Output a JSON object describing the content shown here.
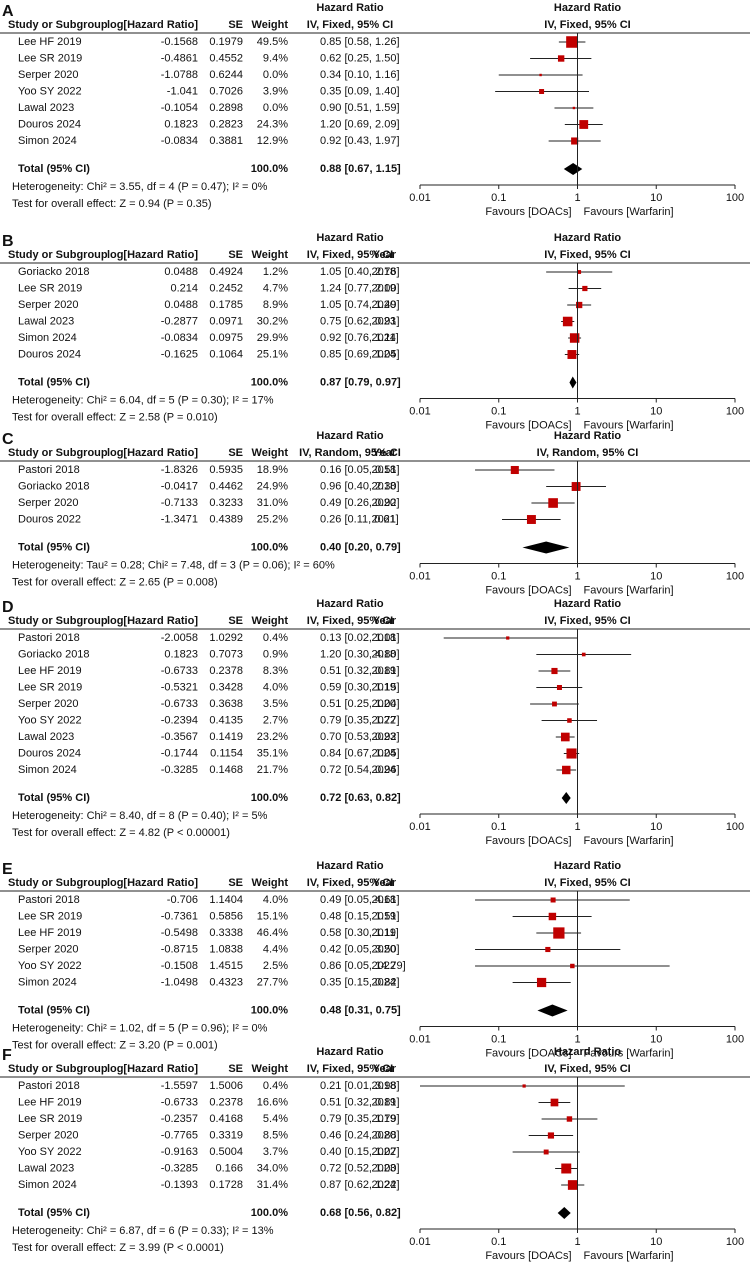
{
  "chart_data": [
    {
      "type": "forest",
      "label": "A",
      "columns": [
        "Study or Subgroup",
        "log[Hazard Ratio]",
        "SE",
        "Weight",
        "Hazard Ratio",
        "IV, Fixed, 95% CI"
      ],
      "plot_title": [
        "Hazard Ratio",
        "IV, Fixed, 95% CI"
      ],
      "rows": [
        {
          "study": "Lee HF 2019",
          "log_hr": -0.1568,
          "se": 0.1979,
          "weight": 49.5,
          "weight_label": "49.5%",
          "hr": 0.85,
          "ci": [
            0.58,
            1.26
          ],
          "hr_label": "0.85 [0.58, 1.26]"
        },
        {
          "study": "Lee SR 2019",
          "log_hr": -0.4861,
          "se": 0.4552,
          "weight": 9.4,
          "weight_label": "9.4%",
          "hr": 0.62,
          "ci": [
            0.25,
            1.5
          ],
          "hr_label": "0.62 [0.25, 1.50]"
        },
        {
          "study": "Serper 2020",
          "log_hr": -1.0788,
          "se": 0.6244,
          "weight": 0,
          "weight_label": "0.0%",
          "hr": 0.34,
          "ci": [
            0.1,
            1.16
          ],
          "hr_label": "0.34 [0.10, 1.16]"
        },
        {
          "study": "Yoo SY 2022",
          "log_hr": -1.041,
          "se": 0.7026,
          "weight": 3.9,
          "weight_label": "3.9%",
          "hr": 0.35,
          "ci": [
            0.09,
            1.4
          ],
          "hr_label": "0.35 [0.09, 1.40]"
        },
        {
          "study": "Lawal 2023",
          "log_hr": -0.1054,
          "se": 0.2898,
          "weight": 0,
          "weight_label": "0.0%",
          "hr": 0.9,
          "ci": [
            0.51,
            1.59
          ],
          "hr_label": "0.90 [0.51, 1.59]"
        },
        {
          "study": "Douros 2024",
          "log_hr": 0.1823,
          "se": 0.2823,
          "weight": 24.3,
          "weight_label": "24.3%",
          "hr": 1.2,
          "ci": [
            0.69,
            2.09
          ],
          "hr_label": "1.20 [0.69, 2.09]"
        },
        {
          "study": "Simon 2024",
          "log_hr": -0.0834,
          "se": 0.3881,
          "weight": 12.9,
          "weight_label": "12.9%",
          "hr": 0.92,
          "ci": [
            0.43,
            1.97
          ],
          "hr_label": "0.92 [0.43, 1.97]"
        }
      ],
      "total": {
        "study": "Total (95% CI)",
        "weight": 100,
        "weight_label": "100.0%",
        "hr": 0.88,
        "ci": [
          0.67,
          1.15
        ],
        "hr_label": "0.88 [0.67, 1.15]"
      },
      "heterogeneity": "Heterogeneity: Chi² = 3.55, df = 4 (P = 0.47); I² = 0%",
      "overall_effect": "Test for overall effect: Z = 0.94 (P = 0.35)",
      "xlim": [
        0.01,
        100
      ],
      "xticks": [
        0.01,
        0.1,
        1,
        10,
        100
      ],
      "log_x": true,
      "x_labels": [
        "Favours [DOACs]",
        "Favours [Warfarin]"
      ],
      "color": "#c00000"
    },
    {
      "type": "forest",
      "label": "B",
      "columns": [
        "Study or Subgroup",
        "log[Hazard Ratio]",
        "SE",
        "Weight",
        "Hazard Ratio",
        "IV, Fixed, 95% CI",
        "Year"
      ],
      "plot_title": [
        "Hazard Ratio",
        "IV, Fixed, 95% CI"
      ],
      "rows": [
        {
          "study": "Goriacko 2018",
          "log_hr": 0.0488,
          "se": 0.4924,
          "weight": 1.2,
          "weight_label": "1.2%",
          "hr": 1.05,
          "ci": [
            0.4,
            2.76
          ],
          "hr_label": "1.05 [0.40, 2.76]",
          "year": 2018
        },
        {
          "study": "Lee SR 2019",
          "log_hr": 0.214,
          "se": 0.2452,
          "weight": 4.7,
          "weight_label": "4.7%",
          "hr": 1.24,
          "ci": [
            0.77,
            2.0
          ],
          "hr_label": "1.24 [0.77, 2.00]",
          "year": 2019
        },
        {
          "study": "Serper 2020",
          "log_hr": 0.0488,
          "se": 0.1785,
          "weight": 8.9,
          "weight_label": "8.9%",
          "hr": 1.05,
          "ci": [
            0.74,
            1.49
          ],
          "hr_label": "1.05 [0.74, 1.49]",
          "year": 2020
        },
        {
          "study": "Lawal 2023",
          "log_hr": -0.2877,
          "se": 0.0971,
          "weight": 30.2,
          "weight_label": "30.2%",
          "hr": 0.75,
          "ci": [
            0.62,
            0.91
          ],
          "hr_label": "0.75 [0.62, 0.91]",
          "year": 2023
        },
        {
          "study": "Simon 2024",
          "log_hr": -0.0834,
          "se": 0.0975,
          "weight": 29.9,
          "weight_label": "29.9%",
          "hr": 0.92,
          "ci": [
            0.76,
            1.11
          ],
          "hr_label": "0.92 [0.76, 1.11]",
          "year": 2024
        },
        {
          "study": "Douros 2024",
          "log_hr": -0.1625,
          "se": 0.1064,
          "weight": 25.1,
          "weight_label": "25.1%",
          "hr": 0.85,
          "ci": [
            0.69,
            1.05
          ],
          "hr_label": "0.85 [0.69, 1.05]",
          "year": 2024
        }
      ],
      "total": {
        "study": "Total (95% CI)",
        "weight": 100,
        "weight_label": "100.0%",
        "hr": 0.87,
        "ci": [
          0.79,
          0.97
        ],
        "hr_label": "0.87 [0.79, 0.97]"
      },
      "heterogeneity": "Heterogeneity: Chi² = 6.04, df = 5 (P = 0.30); I² = 17%",
      "overall_effect": "Test for overall effect: Z = 2.58 (P = 0.010)",
      "xlim": [
        0.01,
        100
      ],
      "xticks": [
        0.01,
        0.1,
        1,
        10,
        100
      ],
      "log_x": true,
      "x_labels": [
        "Favours [DOACs]",
        "Favours [Warfarin]"
      ],
      "color": "#c00000"
    },
    {
      "type": "forest",
      "label": "C",
      "columns": [
        "Study or Subgroup",
        "log[Hazard Ratio]",
        "SE",
        "Weight",
        "Hazard Ratio",
        "IV, Random, 95% CI",
        "Year"
      ],
      "plot_title": [
        "Hazard Ratio",
        "IV, Random, 95% CI"
      ],
      "rows": [
        {
          "study": "Pastori 2018",
          "log_hr": -1.8326,
          "se": 0.5935,
          "weight": 18.9,
          "weight_label": "18.9%",
          "hr": 0.16,
          "ci": [
            0.05,
            0.51
          ],
          "hr_label": "0.16 [0.05, 0.51]",
          "year": 2018
        },
        {
          "study": "Goriacko 2018",
          "log_hr": -0.0417,
          "se": 0.4462,
          "weight": 24.9,
          "weight_label": "24.9%",
          "hr": 0.96,
          "ci": [
            0.4,
            2.3
          ],
          "hr_label": "0.96 [0.40, 2.30]",
          "year": 2018
        },
        {
          "study": "Serper 2020",
          "log_hr": -0.7133,
          "se": 0.3233,
          "weight": 31,
          "weight_label": "31.0%",
          "hr": 0.49,
          "ci": [
            0.26,
            0.92
          ],
          "hr_label": "0.49 [0.26, 0.92]",
          "year": 2020
        },
        {
          "study": "Douros 2022",
          "log_hr": -1.3471,
          "se": 0.4389,
          "weight": 25.2,
          "weight_label": "25.2%",
          "hr": 0.26,
          "ci": [
            0.11,
            0.61
          ],
          "hr_label": "0.26 [0.11, 0.61]",
          "year": 2021
        }
      ],
      "total": {
        "study": "Total (95% CI)",
        "weight": 100,
        "weight_label": "100.0%",
        "hr": 0.4,
        "ci": [
          0.2,
          0.79
        ],
        "hr_label": "0.40 [0.20, 0.79]"
      },
      "heterogeneity": "Heterogeneity: Tau² = 0.28; Chi² = 7.48, df = 3 (P = 0.06); I² = 60%",
      "overall_effect": "Test for overall effect: Z = 2.65 (P = 0.008)",
      "xlim": [
        0.01,
        100
      ],
      "xticks": [
        0.01,
        0.1,
        1,
        10,
        100
      ],
      "log_x": true,
      "x_labels": [
        "Favours [DOACs]",
        "Favours [Warfarin]"
      ],
      "color": "#c00000"
    },
    {
      "type": "forest",
      "label": "D",
      "columns": [
        "Study or Subgroup",
        "log[Hazard Ratio]",
        "SE",
        "Weight",
        "Hazard Ratio",
        "IV, Fixed, 95% CI",
        "Year"
      ],
      "plot_title": [
        "Hazard Ratio",
        "IV, Fixed, 95% CI"
      ],
      "rows": [
        {
          "study": "Pastori 2018",
          "log_hr": -2.0058,
          "se": 1.0292,
          "weight": 0.4,
          "weight_label": "0.4%",
          "hr": 0.13,
          "ci": [
            0.02,
            1.01
          ],
          "hr_label": "0.13 [0.02, 1.01]",
          "year": 2018
        },
        {
          "study": "Goriacko 2018",
          "log_hr": 0.1823,
          "se": 0.7073,
          "weight": 0.9,
          "weight_label": "0.9%",
          "hr": 1.2,
          "ci": [
            0.3,
            4.8
          ],
          "hr_label": "1.20 [0.30, 4.80]",
          "year": 2018
        },
        {
          "study": "Lee HF 2019",
          "log_hr": -0.6733,
          "se": 0.2378,
          "weight": 8.3,
          "weight_label": "8.3%",
          "hr": 0.51,
          "ci": [
            0.32,
            0.81
          ],
          "hr_label": "0.51 [0.32, 0.81]",
          "year": 2019
        },
        {
          "study": "Lee SR 2019",
          "log_hr": -0.5321,
          "se": 0.3428,
          "weight": 4,
          "weight_label": "4.0%",
          "hr": 0.59,
          "ci": [
            0.3,
            1.15
          ],
          "hr_label": "0.59 [0.30, 1.15]",
          "year": 2019
        },
        {
          "study": "Serper 2020",
          "log_hr": -0.6733,
          "se": 0.3638,
          "weight": 3.5,
          "weight_label": "3.5%",
          "hr": 0.51,
          "ci": [
            0.25,
            1.04
          ],
          "hr_label": "0.51 [0.25, 1.04]",
          "year": 2020
        },
        {
          "study": "Yoo SY 2022",
          "log_hr": -0.2394,
          "se": 0.4135,
          "weight": 2.7,
          "weight_label": "2.7%",
          "hr": 0.79,
          "ci": [
            0.35,
            1.77
          ],
          "hr_label": "0.79 [0.35, 1.77]",
          "year": 2022
        },
        {
          "study": "Lawal 2023",
          "log_hr": -0.3567,
          "se": 0.1419,
          "weight": 23.2,
          "weight_label": "23.2%",
          "hr": 0.7,
          "ci": [
            0.53,
            0.92
          ],
          "hr_label": "0.70 [0.53, 0.92]",
          "year": 2023
        },
        {
          "study": "Douros 2024",
          "log_hr": -0.1744,
          "se": 0.1154,
          "weight": 35.1,
          "weight_label": "35.1%",
          "hr": 0.84,
          "ci": [
            0.67,
            1.05
          ],
          "hr_label": "0.84 [0.67, 1.05]",
          "year": 2024
        },
        {
          "study": "Simon 2024",
          "log_hr": -0.3285,
          "se": 0.1468,
          "weight": 21.7,
          "weight_label": "21.7%",
          "hr": 0.72,
          "ci": [
            0.54,
            0.96
          ],
          "hr_label": "0.72 [0.54, 0.96]",
          "year": 2024
        }
      ],
      "total": {
        "study": "Total (95% CI)",
        "weight": 100,
        "weight_label": "100.0%",
        "hr": 0.72,
        "ci": [
          0.63,
          0.82
        ],
        "hr_label": "0.72 [0.63, 0.82]"
      },
      "heterogeneity": "Heterogeneity: Chi² = 8.40, df = 8 (P = 0.40); I² = 5%",
      "overall_effect": "Test for overall effect: Z = 4.82 (P < 0.00001)",
      "xlim": [
        0.01,
        100
      ],
      "xticks": [
        0.01,
        0.1,
        1,
        10,
        100
      ],
      "log_x": true,
      "x_labels": [
        "Favours [DOACs]",
        "Favours [Warfarin]"
      ],
      "color": "#c00000"
    },
    {
      "type": "forest",
      "label": "E",
      "columns": [
        "Study or Subgroup",
        "log[Hazard Ratio]",
        "SE",
        "Weight",
        "Hazard Ratio",
        "IV, Fixed, 95% CI",
        "Year"
      ],
      "plot_title": [
        "Hazard Ratio",
        "IV, Fixed, 95% CI"
      ],
      "rows": [
        {
          "study": "Pastori 2018",
          "log_hr": -0.706,
          "se": 1.1404,
          "weight": 4,
          "weight_label": "4.0%",
          "hr": 0.49,
          "ci": [
            0.05,
            4.61
          ],
          "hr_label": "0.49 [0.05, 4.61]",
          "year": 2018
        },
        {
          "study": "Lee SR 2019",
          "log_hr": -0.7361,
          "se": 0.5856,
          "weight": 15.1,
          "weight_label": "15.1%",
          "hr": 0.48,
          "ci": [
            0.15,
            1.51
          ],
          "hr_label": "0.48 [0.15, 1.51]",
          "year": 2019
        },
        {
          "study": "Lee HF 2019",
          "log_hr": -0.5498,
          "se": 0.3338,
          "weight": 46.4,
          "weight_label": "46.4%",
          "hr": 0.58,
          "ci": [
            0.3,
            1.11
          ],
          "hr_label": "0.58 [0.30, 1.11]",
          "year": 2019
        },
        {
          "study": "Serper 2020",
          "log_hr": -0.8715,
          "se": 1.0838,
          "weight": 4.4,
          "weight_label": "4.4%",
          "hr": 0.42,
          "ci": [
            0.05,
            3.5
          ],
          "hr_label": "0.42 [0.05, 3.50]",
          "year": 2020
        },
        {
          "study": "Yoo SY 2022",
          "log_hr": -0.1508,
          "se": 1.4515,
          "weight": 2.5,
          "weight_label": "2.5%",
          "hr": 0.86,
          "ci": [
            0.05,
            14.79
          ],
          "hr_label": "0.86 [0.05, 14.79]",
          "year": 2022
        },
        {
          "study": "Simon 2024",
          "log_hr": -1.0498,
          "se": 0.4323,
          "weight": 27.7,
          "weight_label": "27.7%",
          "hr": 0.35,
          "ci": [
            0.15,
            0.82
          ],
          "hr_label": "0.35 [0.15, 0.82]",
          "year": 2024
        }
      ],
      "total": {
        "study": "Total (95% CI)",
        "weight": 100,
        "weight_label": "100.0%",
        "hr": 0.48,
        "ci": [
          0.31,
          0.75
        ],
        "hr_label": "0.48 [0.31, 0.75]"
      },
      "heterogeneity": "Heterogeneity: Chi² = 1.02, df = 5 (P = 0.96); I² = 0%",
      "overall_effect": "Test for overall effect: Z = 3.20 (P = 0.001)",
      "xlim": [
        0.01,
        100
      ],
      "xticks": [
        0.01,
        0.1,
        1,
        10,
        100
      ],
      "log_x": true,
      "x_labels": [
        "Favours [DOACs]",
        "Favours [Warfarin]"
      ],
      "color": "#c00000"
    },
    {
      "type": "forest",
      "label": "F",
      "columns": [
        "Study or Subgroup",
        "log[Hazard Ratio]",
        "SE",
        "Weight",
        "Hazard Ratio",
        "IV, Fixed, 95% CI",
        "Year"
      ],
      "plot_title": [
        "Hazard Ratio",
        "IV, Fixed, 95% CI"
      ],
      "rows": [
        {
          "study": "Pastori 2018",
          "log_hr": -1.5597,
          "se": 1.5006,
          "weight": 0.4,
          "weight_label": "0.4%",
          "hr": 0.21,
          "ci": [
            0.01,
            3.98
          ],
          "hr_label": "0.21 [0.01, 3.98]",
          "year": 2018
        },
        {
          "study": "Lee HF 2019",
          "log_hr": -0.6733,
          "se": 0.2378,
          "weight": 16.6,
          "weight_label": "16.6%",
          "hr": 0.51,
          "ci": [
            0.32,
            0.81
          ],
          "hr_label": "0.51 [0.32, 0.81]",
          "year": 2019
        },
        {
          "study": "Lee SR 2019",
          "log_hr": -0.2357,
          "se": 0.4168,
          "weight": 5.4,
          "weight_label": "5.4%",
          "hr": 0.79,
          "ci": [
            0.35,
            1.79
          ],
          "hr_label": "0.79 [0.35, 1.79]",
          "year": 2019
        },
        {
          "study": "Serper 2020",
          "log_hr": -0.7765,
          "se": 0.3319,
          "weight": 8.5,
          "weight_label": "8.5%",
          "hr": 0.46,
          "ci": [
            0.24,
            0.88
          ],
          "hr_label": "0.46 [0.24, 0.88]",
          "year": 2020
        },
        {
          "study": "Yoo SY 2022",
          "log_hr": -0.9163,
          "se": 0.5004,
          "weight": 3.7,
          "weight_label": "3.7%",
          "hr": 0.4,
          "ci": [
            0.15,
            1.07
          ],
          "hr_label": "0.40 [0.15, 1.07]",
          "year": 2022
        },
        {
          "study": "Lawal 2023",
          "log_hr": -0.3285,
          "se": 0.166,
          "weight": 34,
          "weight_label": "34.0%",
          "hr": 0.72,
          "ci": [
            0.52,
            1.0
          ],
          "hr_label": "0.72 [0.52, 1.00]",
          "year": 2023
        },
        {
          "study": "Simon 2024",
          "log_hr": -0.1393,
          "se": 0.1728,
          "weight": 31.4,
          "weight_label": "31.4%",
          "hr": 0.87,
          "ci": [
            0.62,
            1.22
          ],
          "hr_label": "0.87 [0.62, 1.22]",
          "year": 2024
        }
      ],
      "total": {
        "study": "Total (95% CI)",
        "weight": 100,
        "weight_label": "100.0%",
        "hr": 0.68,
        "ci": [
          0.56,
          0.82
        ],
        "hr_label": "0.68 [0.56, 0.82]"
      },
      "heterogeneity": "Heterogeneity: Chi² = 6.87, df = 6 (P = 0.33); I² = 13%",
      "overall_effect": "Test for overall effect: Z = 3.99 (P < 0.0001)",
      "xlim": [
        0.01,
        100
      ],
      "xticks": [
        0.01,
        0.1,
        1,
        10,
        100
      ],
      "log_x": true,
      "x_labels": [
        "Favours [DOACs]",
        "Favours [Warfarin]"
      ],
      "color": "#c00000"
    }
  ]
}
